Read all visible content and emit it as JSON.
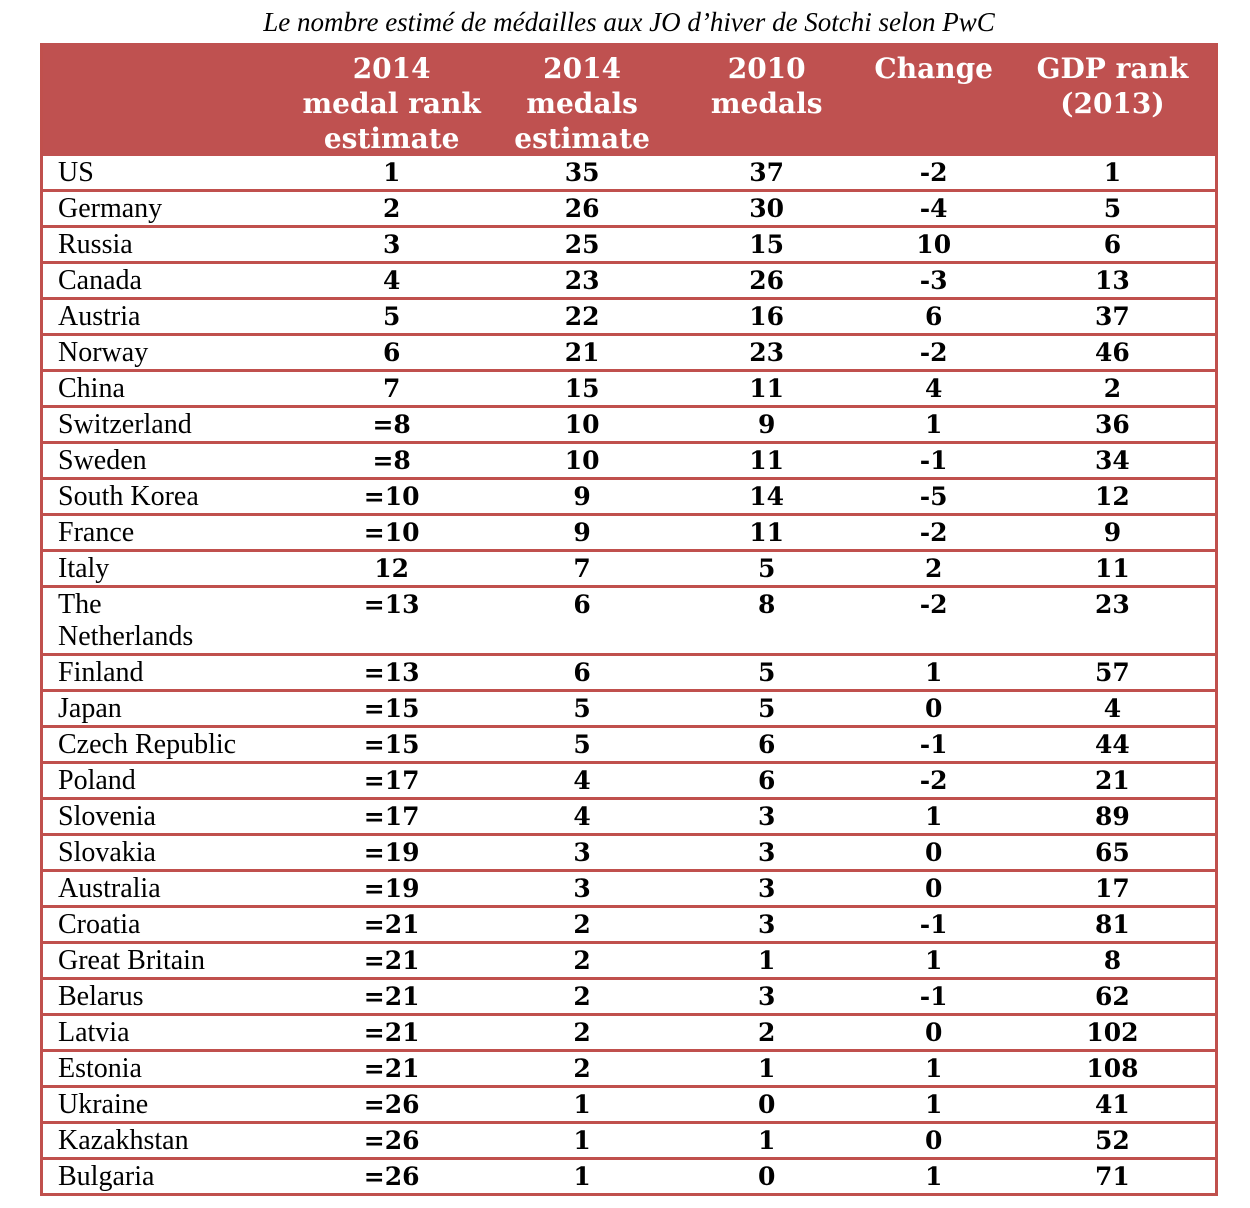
{
  "title": "Le nombre estimé de médailles aux JO d’hiver de Sotchi selon PwC",
  "colors": {
    "header_bg": "#BF5150",
    "border": "#C0504D",
    "header_text": "#FFFFFF",
    "body_text": "#000000"
  },
  "columns": [
    {
      "id": "country",
      "label": ""
    },
    {
      "id": "rank_2014",
      "label": "2014\nmedal rank\nestimate"
    },
    {
      "id": "medals_2014",
      "label": "2014\nmedals\nestimate"
    },
    {
      "id": "medals_2010",
      "label": "2010\nmedals"
    },
    {
      "id": "change",
      "label": "Change"
    },
    {
      "id": "gdp_rank",
      "label": "GDP rank\n(2013)"
    }
  ],
  "chart_data": {
    "type": "table",
    "title": "Le nombre estimé de médailles aux JO d’hiver de Sotchi selon PwC",
    "columns": [
      "",
      "2014 medal rank estimate",
      "2014 medals estimate",
      "2010 medals",
      "Change",
      "GDP rank (2013)"
    ],
    "rows": [
      [
        "US",
        "1",
        "35",
        "37",
        "-2",
        "1"
      ],
      [
        "Germany",
        "2",
        "26",
        "30",
        "-4",
        "5"
      ],
      [
        "Russia",
        "3",
        "25",
        "15",
        "10",
        "6"
      ],
      [
        "Canada",
        "4",
        "23",
        "26",
        "-3",
        "13"
      ],
      [
        "Austria",
        "5",
        "22",
        "16",
        "6",
        "37"
      ],
      [
        "Norway",
        "6",
        "21",
        "23",
        "-2",
        "46"
      ],
      [
        "China",
        "7",
        "15",
        "11",
        "4",
        "2"
      ],
      [
        "Switzerland",
        "=8",
        "10",
        "9",
        "1",
        "36"
      ],
      [
        "Sweden",
        "=8",
        "10",
        "11",
        "-1",
        "34"
      ],
      [
        "South Korea",
        "=10",
        "9",
        "14",
        "-5",
        "12"
      ],
      [
        "France",
        "=10",
        "9",
        "11",
        "-2",
        "9"
      ],
      [
        "Italy",
        "12",
        "7",
        "5",
        "2",
        "11"
      ],
      [
        "The\nNetherlands",
        "=13",
        "6",
        "8",
        "-2",
        "23"
      ],
      [
        "Finland",
        "=13",
        "6",
        "5",
        "1",
        "57"
      ],
      [
        "Japan",
        "=15",
        "5",
        "5",
        "0",
        "4"
      ],
      [
        "Czech Republic",
        "=15",
        "5",
        "6",
        "-1",
        "44"
      ],
      [
        "Poland",
        "=17",
        "4",
        "6",
        "-2",
        "21"
      ],
      [
        "Slovenia",
        "=17",
        "4",
        "3",
        "1",
        "89"
      ],
      [
        "Slovakia",
        "=19",
        "3",
        "3",
        "0",
        "65"
      ],
      [
        "Australia",
        "=19",
        "3",
        "3",
        "0",
        "17"
      ],
      [
        "Croatia",
        "=21",
        "2",
        "3",
        "-1",
        "81"
      ],
      [
        "Great Britain",
        "=21",
        "2",
        "1",
        "1",
        "8"
      ],
      [
        "Belarus",
        "=21",
        "2",
        "3",
        "-1",
        "62"
      ],
      [
        "Latvia",
        "=21",
        "2",
        "2",
        "0",
        "102"
      ],
      [
        "Estonia",
        "=21",
        "2",
        "1",
        "1",
        "108"
      ],
      [
        "Ukraine",
        "=26",
        "1",
        "0",
        "1",
        "41"
      ],
      [
        "Kazakhstan",
        "=26",
        "1",
        "1",
        "0",
        "52"
      ],
      [
        "Bulgaria",
        "=26",
        "1",
        "0",
        "1",
        "71"
      ]
    ]
  }
}
